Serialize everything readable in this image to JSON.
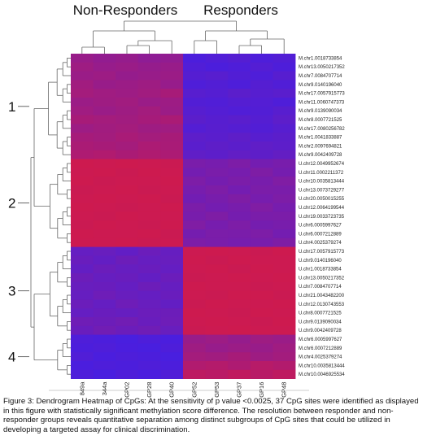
{
  "chart_data": {
    "type": "heatmap",
    "title": "",
    "groups": [
      {
        "name": "Non-Responders",
        "columns": [
          "849a",
          "344a",
          "GP02",
          "GP28",
          "GP40"
        ]
      },
      {
        "name": "Responders",
        "columns": [
          "GP52",
          "GP53",
          "GP37",
          "GP16",
          "GP48"
        ]
      }
    ],
    "columns": [
      "849a",
      "344a",
      "GP02",
      "GP28",
      "GP40",
      "GP52",
      "GP53",
      "GP37",
      "GP16",
      "GP48"
    ],
    "rows": [
      "M.chr1.0018733854",
      "M.chr13.0050217352",
      "M.chr7.0084707714",
      "M.chr9.0140196040",
      "M.chr17.0057915773",
      "M.chr11.0060747373",
      "M.chr9.0139090034",
      "M.chr8.0007721525",
      "M.chr17.0080256782",
      "M.chr1.0041833887",
      "M.chr2.0097694821",
      "M.chr9.0042409728",
      "U.chr12.0049952674",
      "U.chr11.0002211372",
      "U.chr10.0035813444",
      "U.chr13.0073729277",
      "U.chr20.0050015255",
      "U.chr12.0064199544",
      "U.chr19.0033723735",
      "U.chr6.0005997627",
      "U.chr6.0007212889",
      "U.chr4.0025379274",
      "U.chr17.0057915773",
      "U.chr9.0140196040",
      "U.chr1.0018733854",
      "U.chr13.0050217352",
      "U.chr7.0084707714",
      "U.chr21.0043482200",
      "U.chr12.0130743553",
      "U.chr8.0007721525",
      "U.chr9.0139090034",
      "U.chr9.0042409728",
      "M.chr6.0005997627",
      "M.chr6.0007212889",
      "M.chr4.0025379274",
      "M.chr10.0035813444",
      "M.chr10.0046925534"
    ],
    "values": [
      [
        0.62,
        0.58,
        0.6,
        0.55,
        0.57,
        0.12,
        0.15,
        0.18,
        0.13,
        0.16
      ],
      [
        0.66,
        0.61,
        0.63,
        0.6,
        0.62,
        0.15,
        0.12,
        0.14,
        0.17,
        0.13
      ],
      [
        0.63,
        0.65,
        0.6,
        0.62,
        0.64,
        0.18,
        0.2,
        0.16,
        0.14,
        0.19
      ],
      [
        0.68,
        0.62,
        0.64,
        0.66,
        0.61,
        0.14,
        0.16,
        0.13,
        0.18,
        0.15
      ],
      [
        0.7,
        0.67,
        0.65,
        0.68,
        0.72,
        0.2,
        0.18,
        0.22,
        0.19,
        0.21
      ],
      [
        0.64,
        0.66,
        0.68,
        0.63,
        0.65,
        0.16,
        0.15,
        0.18,
        0.17,
        0.14
      ],
      [
        0.67,
        0.63,
        0.66,
        0.69,
        0.64,
        0.19,
        0.17,
        0.15,
        0.16,
        0.2
      ],
      [
        0.72,
        0.7,
        0.68,
        0.71,
        0.74,
        0.22,
        0.19,
        0.21,
        0.18,
        0.23
      ],
      [
        0.65,
        0.68,
        0.7,
        0.66,
        0.67,
        0.17,
        0.2,
        0.18,
        0.16,
        0.19
      ],
      [
        0.71,
        0.69,
        0.73,
        0.7,
        0.72,
        0.23,
        0.21,
        0.24,
        0.2,
        0.22
      ],
      [
        0.74,
        0.72,
        0.7,
        0.75,
        0.73,
        0.21,
        0.24,
        0.22,
        0.25,
        0.23
      ],
      [
        0.76,
        0.78,
        0.74,
        0.77,
        0.75,
        0.25,
        0.23,
        0.26,
        0.24,
        0.27
      ],
      [
        0.97,
        0.96,
        0.97,
        0.96,
        0.95,
        0.42,
        0.4,
        0.44,
        0.38,
        0.41
      ],
      [
        0.96,
        0.97,
        0.95,
        0.97,
        0.96,
        0.38,
        0.42,
        0.4,
        0.45,
        0.39
      ],
      [
        0.97,
        0.95,
        0.96,
        0.96,
        0.97,
        0.44,
        0.39,
        0.43,
        0.41,
        0.46
      ],
      [
        0.95,
        0.96,
        0.97,
        0.95,
        0.96,
        0.4,
        0.44,
        0.38,
        0.43,
        0.42
      ],
      [
        0.96,
        0.97,
        0.96,
        0.97,
        0.95,
        0.37,
        0.41,
        0.45,
        0.4,
        0.44
      ],
      [
        0.97,
        0.96,
        0.95,
        0.96,
        0.97,
        0.43,
        0.38,
        0.41,
        0.46,
        0.4
      ],
      [
        0.96,
        0.95,
        0.97,
        0.96,
        0.96,
        0.41,
        0.45,
        0.39,
        0.42,
        0.43
      ],
      [
        0.95,
        0.97,
        0.96,
        0.95,
        0.97,
        0.46,
        0.4,
        0.44,
        0.39,
        0.41
      ],
      [
        0.97,
        0.96,
        0.96,
        0.97,
        0.95,
        0.39,
        0.43,
        0.42,
        0.44,
        0.38
      ],
      [
        0.96,
        0.96,
        0.97,
        0.95,
        0.96,
        0.44,
        0.42,
        0.4,
        0.41,
        0.45
      ],
      [
        0.28,
        0.3,
        0.26,
        0.32,
        0.29,
        0.96,
        0.97,
        0.96,
        0.95,
        0.97
      ],
      [
        0.31,
        0.27,
        0.33,
        0.29,
        0.3,
        0.97,
        0.95,
        0.97,
        0.96,
        0.96
      ],
      [
        0.27,
        0.32,
        0.29,
        0.31,
        0.28,
        0.96,
        0.97,
        0.95,
        0.97,
        0.96
      ],
      [
        0.33,
        0.29,
        0.31,
        0.27,
        0.32,
        0.95,
        0.96,
        0.97,
        0.96,
        0.97
      ],
      [
        0.3,
        0.31,
        0.28,
        0.33,
        0.29,
        0.97,
        0.96,
        0.96,
        0.95,
        0.96
      ],
      [
        0.29,
        0.34,
        0.3,
        0.28,
        0.31,
        0.96,
        0.95,
        0.97,
        0.97,
        0.95
      ],
      [
        0.32,
        0.28,
        0.34,
        0.3,
        0.27,
        0.95,
        0.97,
        0.96,
        0.96,
        0.97
      ],
      [
        0.28,
        0.31,
        0.29,
        0.32,
        0.33,
        0.97,
        0.96,
        0.95,
        0.97,
        0.96
      ],
      [
        0.35,
        0.33,
        0.36,
        0.31,
        0.34,
        0.96,
        0.97,
        0.96,
        0.95,
        0.97
      ],
      [
        0.31,
        0.36,
        0.32,
        0.35,
        0.3,
        0.95,
        0.96,
        0.97,
        0.96,
        0.96
      ],
      [
        0.14,
        0.12,
        0.1,
        0.13,
        0.11,
        0.62,
        0.65,
        0.6,
        0.66,
        0.63
      ],
      [
        0.12,
        0.14,
        0.11,
        0.1,
        0.13,
        0.66,
        0.61,
        0.64,
        0.62,
        0.67
      ],
      [
        0.15,
        0.11,
        0.13,
        0.12,
        0.1,
        0.7,
        0.68,
        0.72,
        0.66,
        0.69
      ],
      [
        0.11,
        0.13,
        0.12,
        0.14,
        0.12,
        0.78,
        0.8,
        0.76,
        0.82,
        0.79
      ],
      [
        0.13,
        0.1,
        0.14,
        0.11,
        0.15,
        0.86,
        0.84,
        0.88,
        0.83,
        0.87
      ]
    ],
    "color_scale": {
      "low": "#3a1ff0",
      "high": "#d21a4a"
    },
    "clusters": [
      {
        "label": "1",
        "start_row": 0,
        "end_row": 11
      },
      {
        "label": "2",
        "start_row": 12,
        "end_row": 21
      },
      {
        "label": "3",
        "start_row": 22,
        "end_row": 31
      },
      {
        "label": "4",
        "start_row": 32,
        "end_row": 36
      }
    ],
    "legend": "none",
    "grid": false
  },
  "caption": "Figure 3:  Dendrogram Heatmap of CpGs:  At the sensitivity of p value <0.0025, 37 CpG sites were identified as displayed in this figure with statistically significant methylation score difference.  The resolution between responder and non-responder groups reveals quantitative separation among distinct subgroups of CpG sites that could be utilized in developing a targeted assay for clinical discrimination."
}
